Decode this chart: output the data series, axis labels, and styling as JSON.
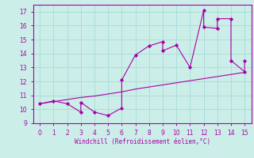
{
  "xlabel": "Windchill (Refroidissement éolien,°C)",
  "bg_color": "#cceee8",
  "grid_color": "#aaddda",
  "line_color": "#aa00aa",
  "xlim": [
    -0.5,
    15.5
  ],
  "ylim": [
    9,
    17.5
  ],
  "xticks": [
    0,
    1,
    2,
    3,
    4,
    5,
    6,
    7,
    8,
    9,
    10,
    11,
    12,
    13,
    14,
    15
  ],
  "yticks": [
    9,
    10,
    11,
    12,
    13,
    14,
    15,
    16,
    17
  ],
  "jagged_x": [
    0,
    1,
    2,
    3,
    3,
    4,
    5,
    6,
    6,
    7,
    8,
    9,
    9,
    10,
    11,
    12,
    12,
    13,
    13,
    14,
    14,
    15,
    15
  ],
  "jagged_y": [
    10.4,
    10.6,
    10.4,
    9.8,
    10.5,
    9.8,
    9.55,
    10.1,
    12.1,
    13.9,
    14.55,
    14.85,
    14.2,
    14.6,
    13.0,
    17.1,
    15.9,
    15.8,
    16.5,
    16.5,
    13.5,
    12.7,
    13.5
  ],
  "smooth_x": [
    0,
    1,
    2,
    3,
    4,
    5,
    6,
    7,
    8,
    9,
    10,
    11,
    12,
    13,
    14,
    15
  ],
  "smooth_y": [
    10.4,
    10.55,
    10.7,
    10.85,
    10.95,
    11.1,
    11.25,
    11.45,
    11.6,
    11.75,
    11.9,
    12.05,
    12.2,
    12.35,
    12.5,
    12.65
  ]
}
